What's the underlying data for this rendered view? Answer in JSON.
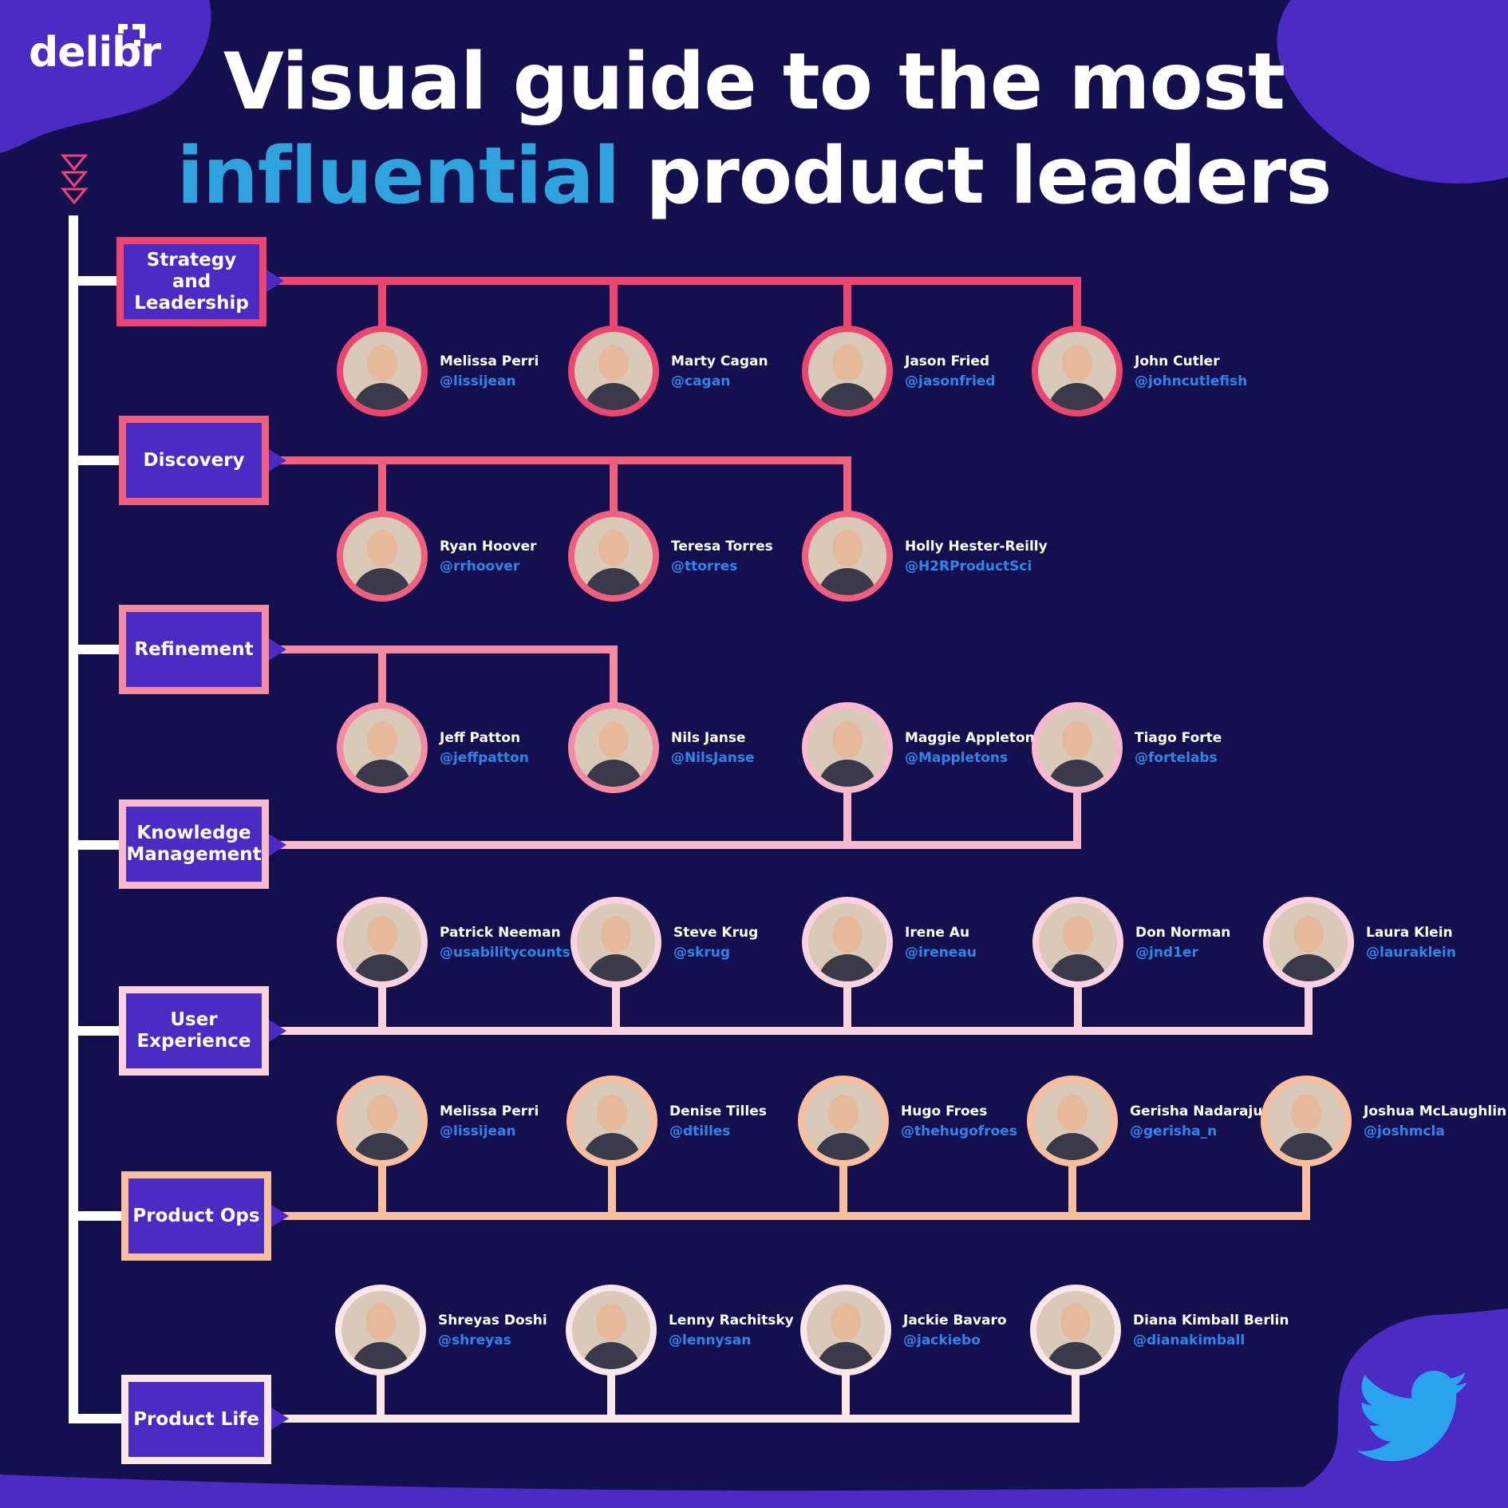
{
  "brand": {
    "logo_text": "delibr",
    "logo_icon": "delibr-bracket-icon"
  },
  "title": {
    "line1": "Visual guide to the most",
    "accent": "influential",
    "rest": " product leaders"
  },
  "colors": {
    "background": "#141050",
    "blob": "#4b2bc4",
    "title_accent": "#2fa3de",
    "handle": "#2f86ea",
    "twitter": "#2aa3ef",
    "spine": "#ffffff"
  },
  "categories": [
    {
      "label": "Strategy and Leadership",
      "color": "#ee4470",
      "people": [
        {
          "name": "Melissa Perri",
          "handle": "@lissijean"
        },
        {
          "name": "Marty Cagan",
          "handle": "@cagan"
        },
        {
          "name": "Jason Fried",
          "handle": "@jasonfried"
        },
        {
          "name": "John Cutler",
          "handle": "@johncutlefish"
        }
      ]
    },
    {
      "label": "Discovery",
      "color": "#f0607e",
      "people": [
        {
          "name": "Ryan Hoover",
          "handle": "@rrhoover"
        },
        {
          "name": "Teresa Torres",
          "handle": "@ttorres"
        },
        {
          "name": "Holly Hester-Reilly",
          "handle": "@H2RProductSci"
        }
      ]
    },
    {
      "label": "Refinement",
      "color": "#f58aa3",
      "people": [
        {
          "name": "Jeff Patton",
          "handle": "@jeffpatton"
        },
        {
          "name": "Nils Janse",
          "handle": "@NilsJanse"
        }
      ]
    },
    {
      "label": "Knowledge Management",
      "color": "#f7b9cb",
      "people": [
        {
          "name": "Maggie Appleton",
          "handle": "@Mappletons"
        },
        {
          "name": "Tiago Forte",
          "handle": "@fortelabs"
        }
      ]
    },
    {
      "label": "User Experience",
      "color": "#fad3de",
      "people": [
        {
          "name": "Patrick Neeman",
          "handle": "@usabilitycounts"
        },
        {
          "name": "Steve Krug",
          "handle": "@skrug"
        },
        {
          "name": "Irene Au",
          "handle": "@ireneau"
        },
        {
          "name": "Don Norman",
          "handle": "@jnd1er"
        },
        {
          "name": "Laura Klein",
          "handle": "@lauraklein"
        }
      ]
    },
    {
      "label": "Product Ops",
      "color": "#f9bf9c",
      "people": [
        {
          "name": "Melissa Perri",
          "handle": "@lissijean"
        },
        {
          "name": "Denise Tilles",
          "handle": "@dtilles"
        },
        {
          "name": "Hugo Froes",
          "handle": "@thehugofroes"
        },
        {
          "name": "Gerisha Nadaraju",
          "handle": "@gerisha_n"
        },
        {
          "name": "Joshua McLaughlin",
          "handle": "@joshmcla"
        }
      ]
    },
    {
      "label": "Product Life",
      "color": "#fbe6ea",
      "people": [
        {
          "name": "Shreyas Doshi",
          "handle": "@shreyas"
        },
        {
          "name": "Lenny Rachitsky",
          "handle": "@lennysan"
        },
        {
          "name": "Jackie Bavaro",
          "handle": "@jackiebo"
        },
        {
          "name": "Diana Kimball Berlin",
          "handle": "@dianakimball"
        }
      ]
    }
  ],
  "icons": {
    "start_marker": "triple-triangle-icon",
    "social": "twitter-bird-icon"
  }
}
